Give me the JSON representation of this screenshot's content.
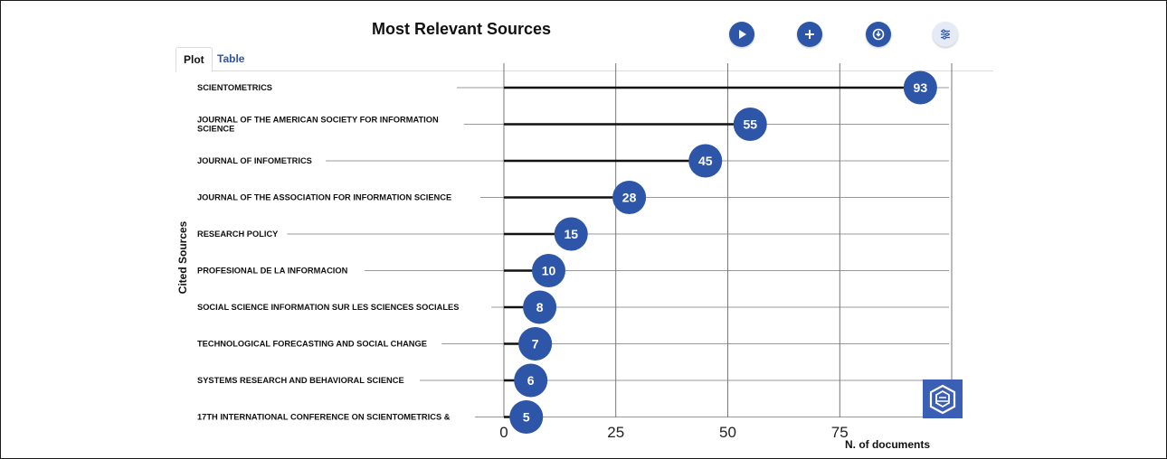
{
  "toolbar": {
    "play_icon": "play-icon",
    "add_icon": "plus-icon",
    "download_icon": "download-icon",
    "settings_icon": "sliders-icon"
  },
  "tabs": [
    {
      "label": "Plot",
      "active": true
    },
    {
      "label": "Table",
      "active": false
    }
  ],
  "colors": {
    "bubble": "#2d55a8",
    "stem": "#111111",
    "grid": "#555555",
    "guide": "#777777"
  },
  "chart_data": {
    "type": "lollipop",
    "title": "Most Relevant Sources",
    "xlabel": "N. of documents",
    "ylabel": "Cited Sources",
    "xlim": [
      0,
      100
    ],
    "xticks": [
      0,
      25,
      50,
      75
    ],
    "grid": true,
    "categories": [
      "SCIENTOMETRICS",
      "JOURNAL OF THE AMERICAN SOCIETY FOR INFORMATION SCIENCE",
      "JOURNAL OF INFOMETRICS",
      "JOURNAL OF THE ASSOCIATION FOR INFORMATION SCIENCE",
      "RESEARCH POLICY",
      "PROFESIONAL DE LA INFORMACION",
      "SOCIAL SCIENCE INFORMATION SUR LES SCIENCES SOCIALES",
      "TECHNOLOGICAL FORECASTING AND SOCIAL CHANGE",
      "SYSTEMS RESEARCH AND BEHAVIORAL SCIENCE",
      "17TH INTERNATIONAL CONFERENCE ON SCIENTOMETRICS &"
    ],
    "category_lines": [
      [
        "SCIENTOMETRICS"
      ],
      [
        "JOURNAL OF THE AMERICAN SOCIETY FOR INFORMATION",
        "SCIENCE"
      ],
      [
        "JOURNAL OF INFOMETRICS"
      ],
      [
        "JOURNAL OF THE ASSOCIATION FOR INFORMATION SCIENCE"
      ],
      [
        "RESEARCH POLICY"
      ],
      [
        "PROFESIONAL DE LA INFORMACION"
      ],
      [
        "SOCIAL SCIENCE INFORMATION SUR LES SCIENCES SOCIALES"
      ],
      [
        "TECHNOLOGICAL FORECASTING AND SOCIAL CHANGE"
      ],
      [
        "SYSTEMS RESEARCH AND BEHAVIORAL SCIENCE"
      ],
      [
        "17TH INTERNATIONAL CONFERENCE ON SCIENTOMETRICS &"
      ]
    ],
    "values": [
      93,
      55,
      45,
      28,
      15,
      10,
      8,
      7,
      6,
      5
    ]
  }
}
